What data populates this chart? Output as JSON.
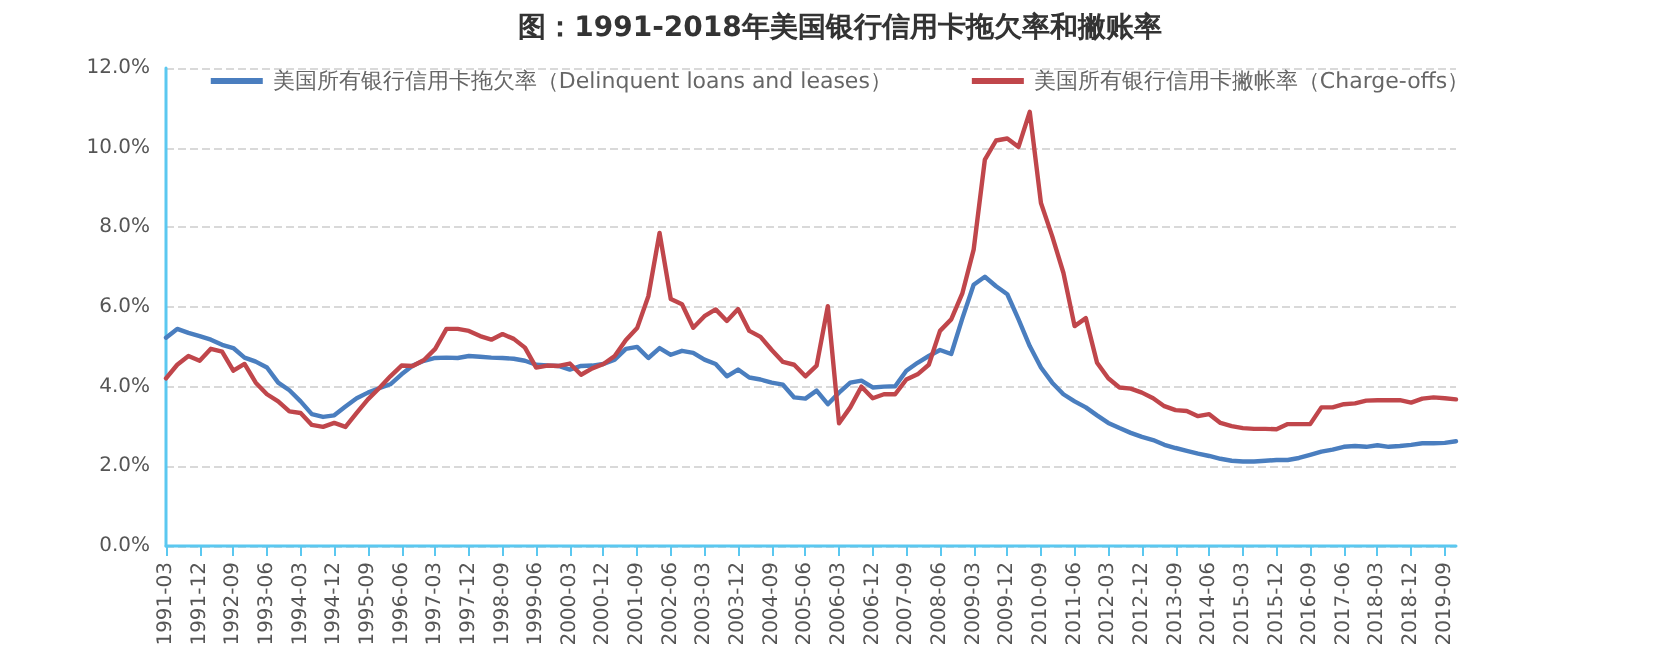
{
  "chart_data": {
    "type": "line",
    "title": "图：1991-2018年美国银行信用卡拖欠率和撇账率",
    "categories": [
      "1991-03",
      null,
      null,
      "1991-12",
      null,
      null,
      "1992-09",
      null,
      null,
      "1993-06",
      null,
      null,
      "1994-03",
      null,
      null,
      "1994-12",
      null,
      null,
      "1995-09",
      null,
      null,
      "1996-06",
      null,
      null,
      "1997-03",
      null,
      null,
      "1997-12",
      null,
      null,
      "1998-09",
      null,
      null,
      "1999-06",
      null,
      null,
      "2000-03",
      null,
      null,
      "2000-12",
      null,
      null,
      "2001-09",
      null,
      null,
      "2002-06",
      null,
      null,
      "2003-03",
      null,
      null,
      "2003-12",
      null,
      null,
      "2004-09",
      null,
      null,
      "2005-06",
      null,
      null,
      "2006-03",
      null,
      null,
      "2006-12",
      null,
      null,
      "2007-09",
      null,
      null,
      "2008-06",
      null,
      null,
      "2009-03",
      null,
      null,
      "2009-12",
      null,
      null,
      "2010-09",
      null,
      null,
      "2011-06",
      null,
      null,
      "2012-03",
      null,
      null,
      "2012-12",
      null,
      null,
      "2013-09",
      null,
      null,
      "2014-06",
      null,
      null,
      "2015-03",
      null,
      null,
      "2015-12",
      null,
      null,
      "2016-09",
      null,
      null,
      "2017-06",
      null,
      null,
      "2018-03",
      null,
      null,
      "2018-12",
      null,
      null,
      "2019-09",
      null
    ],
    "series": [
      {
        "name": "美国所有银行信用卡拖欠率（Delinquent loans and leases）",
        "color": "#4a7ebf",
        "values": [
          5.23,
          5.45,
          5.35,
          5.27,
          5.18,
          5.05,
          4.97,
          4.73,
          4.63,
          4.48,
          4.1,
          3.91,
          3.63,
          3.31,
          3.24,
          3.28,
          3.5,
          3.71,
          3.85,
          3.96,
          4.06,
          4.31,
          4.53,
          4.65,
          4.72,
          4.73,
          4.72,
          4.77,
          4.75,
          4.73,
          4.72,
          4.7,
          4.65,
          4.55,
          4.53,
          4.52,
          4.43,
          4.52,
          4.53,
          4.57,
          4.68,
          4.95,
          5.0,
          4.72,
          4.97,
          4.8,
          4.9,
          4.85,
          4.68,
          4.57,
          4.26,
          4.43,
          4.23,
          4.18,
          4.1,
          4.05,
          3.73,
          3.7,
          3.9,
          3.56,
          3.85,
          4.1,
          4.15,
          3.98,
          4.0,
          4.01,
          4.4,
          4.6,
          4.77,
          4.92,
          4.82,
          5.72,
          6.56,
          6.76,
          6.52,
          6.32,
          5.69,
          5.02,
          4.48,
          4.1,
          3.81,
          3.63,
          3.48,
          3.28,
          3.09,
          2.96,
          2.84,
          2.74,
          2.66,
          2.54,
          2.46,
          2.39,
          2.32,
          2.26,
          2.19,
          2.14,
          2.12,
          2.12,
          2.14,
          2.16,
          2.16,
          2.21,
          2.29,
          2.37,
          2.42,
          2.49,
          2.51,
          2.49,
          2.53,
          2.49,
          2.51,
          2.54,
          2.58,
          2.58,
          2.59,
          2.63
        ]
      },
      {
        "name": "美国所有银行信用卡撇帐率（Charge-offs）",
        "color": "#c0464b",
        "values": [
          4.21,
          4.55,
          4.77,
          4.65,
          4.95,
          4.88,
          4.4,
          4.57,
          4.1,
          3.81,
          3.63,
          3.38,
          3.34,
          3.04,
          2.99,
          3.09,
          2.99,
          3.34,
          3.68,
          3.96,
          4.26,
          4.53,
          4.52,
          4.67,
          4.95,
          5.45,
          5.45,
          5.4,
          5.27,
          5.18,
          5.32,
          5.2,
          4.98,
          4.48,
          4.53,
          4.52,
          4.58,
          4.3,
          4.46,
          4.57,
          4.77,
          5.17,
          5.47,
          6.27,
          7.86,
          6.2,
          6.07,
          5.48,
          5.77,
          5.94,
          5.65,
          5.95,
          5.4,
          5.25,
          4.92,
          4.62,
          4.55,
          4.26,
          4.53,
          6.02,
          3.08,
          3.48,
          4.0,
          3.71,
          3.81,
          3.81,
          4.18,
          4.31,
          4.55,
          5.4,
          5.69,
          6.35,
          7.44,
          9.7,
          10.18,
          10.23,
          10.02,
          10.9,
          8.61,
          7.78,
          6.86,
          5.52,
          5.72,
          4.6,
          4.21,
          3.98,
          3.95,
          3.85,
          3.71,
          3.51,
          3.41,
          3.39,
          3.26,
          3.31,
          3.09,
          3.01,
          2.96,
          2.94,
          2.94,
          2.93,
          3.06,
          3.06,
          3.06,
          3.48,
          3.48,
          3.56,
          3.58,
          3.65,
          3.66,
          3.66,
          3.66,
          3.6,
          3.7,
          3.73,
          3.71,
          3.68
        ]
      }
    ],
    "ylim": [
      0,
      12
    ],
    "yticks": [
      {
        "value": 0,
        "label": "0.0%"
      },
      {
        "value": 2,
        "label": "2.0%"
      },
      {
        "value": 4,
        "label": "4.0%"
      },
      {
        "value": 6,
        "label": "6.0%"
      },
      {
        "value": 8,
        "label": "8.0%"
      },
      {
        "value": 10,
        "label": "10.0%"
      },
      {
        "value": 12,
        "label": "12.0%"
      }
    ],
    "grid": "y",
    "legend": "top",
    "marker": "none",
    "line_style": "solid"
  }
}
